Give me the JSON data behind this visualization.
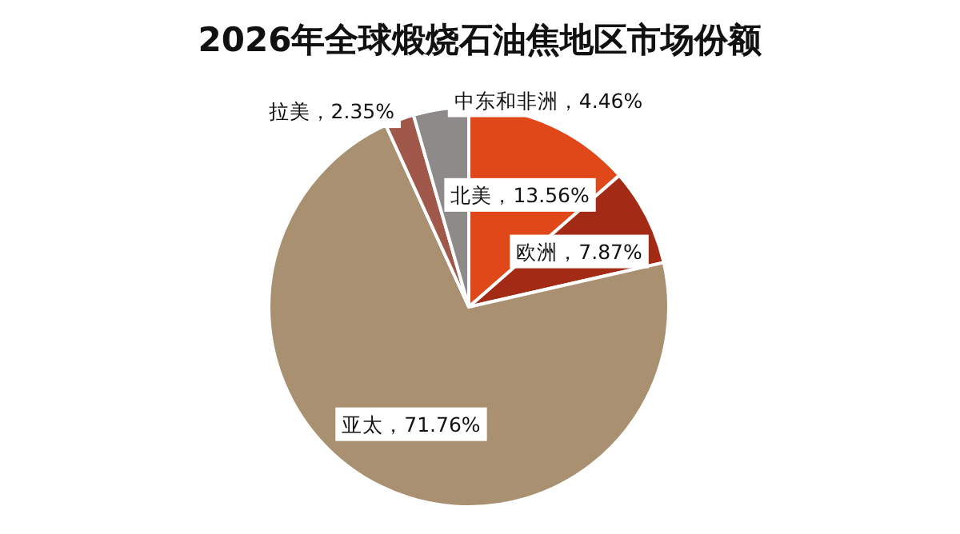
{
  "chart_data": {
    "type": "pie",
    "title": "2026年全球煅烧石油焦地区市场份额",
    "categories": [
      "北美",
      "欧洲",
      "亚太",
      "拉美",
      "中东和非洲"
    ],
    "values": [
      13.56,
      7.87,
      71.76,
      2.35,
      4.46
    ],
    "value_labels": [
      "，13.56%",
      "，7.87%",
      "，71.76%",
      "，2.35%",
      "，4.46%"
    ],
    "colors": [
      "#e0481a",
      "#a32a14",
      "#a89070",
      "#a0584a",
      "#8f8a8a"
    ]
  }
}
